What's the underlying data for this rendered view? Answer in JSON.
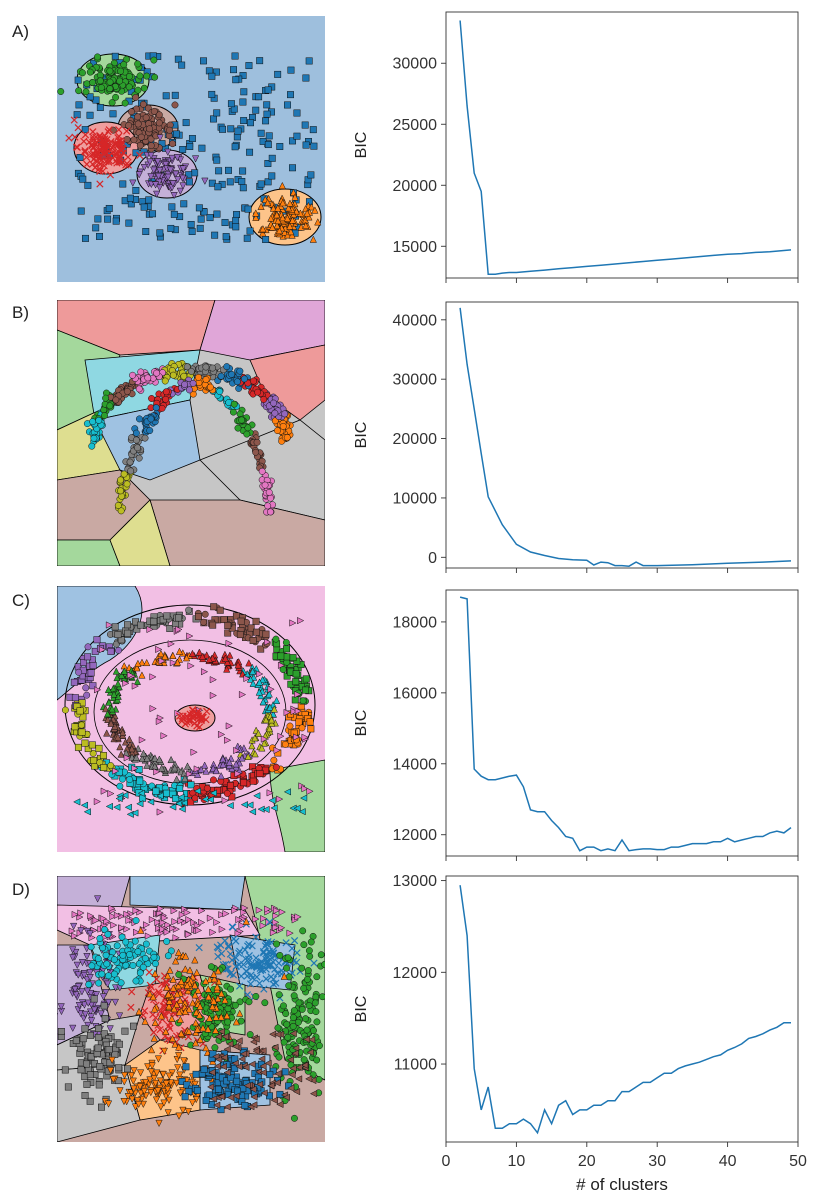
{
  "panel_labels": [
    "A)",
    "B)",
    "C)",
    "D)"
  ],
  "colors": {
    "line": "#1f77b4",
    "red": "#d62728",
    "green": "#2ca02c",
    "blue": "#1f77b4",
    "orange": "#ff7f0e",
    "purple": "#9467bd",
    "brown": "#8c564b",
    "pink": "#e377c2",
    "gray": "#7f7f7f",
    "olive": "#bcbd22",
    "cyan": "#17becf"
  },
  "chart_data": [
    {
      "type": "line",
      "panel": "A)",
      "ylabel": "BIC",
      "xlabel": "",
      "xlim": [
        0,
        50
      ],
      "ylim": [
        12400,
        34200
      ],
      "yticks": [
        15000,
        20000,
        25000,
        30000
      ],
      "ytick_labels": [
        "15000",
        "20000",
        "25000",
        "30000"
      ],
      "x": [
        2,
        3,
        4,
        5,
        6,
        7,
        8,
        9,
        10,
        12,
        14,
        16,
        18,
        20,
        22,
        24,
        26,
        28,
        30,
        32,
        34,
        36,
        38,
        40,
        42,
        44,
        46,
        48,
        49
      ],
      "y": [
        33500,
        26500,
        21000,
        19500,
        12700,
        12700,
        12800,
        12850,
        12850,
        12950,
        13050,
        13150,
        13250,
        13350,
        13450,
        13550,
        13650,
        13750,
        13850,
        13950,
        14050,
        14150,
        14250,
        14350,
        14400,
        14500,
        14550,
        14650,
        14700
      ]
    },
    {
      "type": "line",
      "panel": "B)",
      "ylabel": "BIC",
      "xlabel": "",
      "xlim": [
        0,
        50
      ],
      "ylim": [
        -1800,
        43000
      ],
      "yticks": [
        0,
        10000,
        20000,
        30000,
        40000
      ],
      "ytick_labels": [
        "0",
        "10000",
        "20000",
        "30000",
        "40000"
      ],
      "x": [
        2,
        3,
        4,
        5,
        6,
        8,
        10,
        12,
        14,
        16,
        18,
        20,
        21,
        22,
        23,
        24,
        25,
        26,
        27,
        28,
        30,
        35,
        40,
        45,
        49
      ],
      "y": [
        42000,
        32500,
        25000,
        17500,
        10200,
        5500,
        2200,
        900,
        300,
        -200,
        -400,
        -500,
        -1300,
        -800,
        -900,
        -1400,
        -1400,
        -1500,
        -800,
        -1400,
        -1400,
        -1250,
        -1000,
        -800,
        -600
      ]
    },
    {
      "type": "line",
      "panel": "C)",
      "ylabel": "BIC",
      "xlabel": "",
      "xlim": [
        0,
        50
      ],
      "ylim": [
        11400,
        18900
      ],
      "yticks": [
        12000,
        14000,
        16000,
        18000
      ],
      "ytick_labels": [
        "12000",
        "14000",
        "16000",
        "18000"
      ],
      "x": [
        2,
        3,
        4,
        5,
        6,
        7,
        8,
        9,
        10,
        11,
        12,
        13,
        14,
        15,
        16,
        17,
        18,
        19,
        20,
        21,
        22,
        23,
        24,
        25,
        26,
        27,
        28,
        29,
        30,
        31,
        32,
        33,
        34,
        35,
        36,
        37,
        38,
        39,
        40,
        41,
        42,
        43,
        44,
        45,
        46,
        47,
        48,
        49
      ],
      "y": [
        18700,
        18650,
        13850,
        13650,
        13550,
        13550,
        13600,
        13650,
        13680,
        13350,
        12700,
        12650,
        12650,
        12400,
        12200,
        11950,
        11900,
        11550,
        11650,
        11650,
        11550,
        11600,
        11550,
        11850,
        11550,
        11580,
        11600,
        11600,
        11580,
        11580,
        11650,
        11650,
        11700,
        11750,
        11750,
        11750,
        11800,
        11800,
        11900,
        11800,
        11850,
        11900,
        11950,
        11950,
        12050,
        12100,
        12050,
        12200
      ]
    },
    {
      "type": "line",
      "panel": "D)",
      "ylabel": "BIC",
      "xlabel": "# of clusters",
      "xlim": [
        0,
        50
      ],
      "xticks": [
        0,
        10,
        20,
        30,
        40,
        50
      ],
      "xtick_labels": [
        "0",
        "10",
        "20",
        "30",
        "40",
        "50"
      ],
      "ylim": [
        10150,
        13050
      ],
      "yticks": [
        11000,
        12000,
        13000
      ],
      "ytick_labels": [
        "11000",
        "12000",
        "13000"
      ],
      "x": [
        2,
        3,
        4,
        5,
        6,
        7,
        8,
        9,
        10,
        11,
        12,
        13,
        14,
        15,
        16,
        17,
        18,
        19,
        20,
        21,
        22,
        23,
        24,
        25,
        26,
        27,
        28,
        29,
        30,
        31,
        32,
        33,
        34,
        35,
        36,
        37,
        38,
        39,
        40,
        41,
        42,
        43,
        44,
        45,
        46,
        47,
        48,
        49
      ],
      "y": [
        12950,
        12400,
        10950,
        10500,
        10750,
        10300,
        10300,
        10350,
        10350,
        10400,
        10350,
        10250,
        10500,
        10350,
        10550,
        10600,
        10450,
        10500,
        10500,
        10550,
        10550,
        10600,
        10600,
        10700,
        10700,
        10750,
        10800,
        10800,
        10850,
        10900,
        10900,
        10950,
        10980,
        11000,
        11020,
        11050,
        11080,
        11100,
        11150,
        11180,
        11220,
        11280,
        11300,
        11330,
        11370,
        11400,
        11450,
        11450
      ]
    }
  ]
}
